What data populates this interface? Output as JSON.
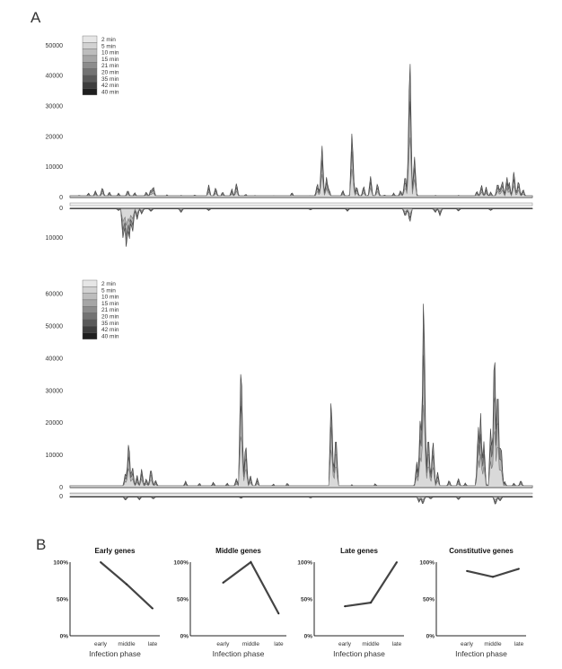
{
  "figure": {
    "panel_a_label": "A",
    "panel_b_label": "B"
  },
  "legend_items": [
    "2 min",
    "5 min",
    "10 min",
    "15 min",
    "21 min",
    "20 min",
    "35 min",
    "42 min",
    "40 min"
  ],
  "legend_colors": [
    "#e6e6e6",
    "#d2d2d2",
    "#bdbdbd",
    "#a6a6a6",
    "#8c8c8c",
    "#737373",
    "#595959",
    "#3d3d3d",
    "#1f1f1f"
  ],
  "chart_data": [
    {
      "type": "area",
      "x_range": [
        0,
        100
      ],
      "ylim": [
        0,
        52000
      ],
      "ylim_below": [
        0,
        14000
      ],
      "yticks": [
        0,
        10000,
        20000,
        30000,
        40000,
        50000
      ],
      "yticks_below": [
        0,
        10000
      ],
      "grid": false,
      "legend_position": "top-left",
      "peaks": [
        {
          "x": 2,
          "y": 900
        },
        {
          "x": 4,
          "y": 1600
        },
        {
          "x": 5.5,
          "y": 2300
        },
        {
          "x": 7,
          "y": 3600
        },
        {
          "x": 8.5,
          "y": 2000
        },
        {
          "x": 10.5,
          "y": 1500
        },
        {
          "x": 12.5,
          "y": 2600
        },
        {
          "x": 14,
          "y": 1700
        },
        {
          "x": 16.5,
          "y": 2000
        },
        {
          "x": 17.5,
          "y": 3000
        },
        {
          "x": 18,
          "y": 4000
        },
        {
          "x": 21,
          "y": 1000
        },
        {
          "x": 24,
          "y": 800
        },
        {
          "x": 27,
          "y": 1000
        },
        {
          "x": 30,
          "y": 4200
        },
        {
          "x": 31.5,
          "y": 3500
        },
        {
          "x": 33,
          "y": 2000
        },
        {
          "x": 35,
          "y": 2800
        },
        {
          "x": 36,
          "y": 5000
        },
        {
          "x": 38,
          "y": 1200
        },
        {
          "x": 40,
          "y": 700
        },
        {
          "x": 44,
          "y": 700
        },
        {
          "x": 48,
          "y": 1800
        },
        {
          "x": 52,
          "y": 800
        },
        {
          "x": 53.5,
          "y": 5000
        },
        {
          "x": 54.5,
          "y": 17800
        },
        {
          "x": 55.5,
          "y": 7000
        },
        {
          "x": 56,
          "y": 3000
        },
        {
          "x": 59,
          "y": 2500
        },
        {
          "x": 61,
          "y": 23000
        },
        {
          "x": 62,
          "y": 4000
        },
        {
          "x": 63.5,
          "y": 4000
        },
        {
          "x": 65,
          "y": 7000
        },
        {
          "x": 66.5,
          "y": 5000
        },
        {
          "x": 68,
          "y": 1000
        },
        {
          "x": 70,
          "y": 1500
        },
        {
          "x": 71.5,
          "y": 2500
        },
        {
          "x": 72.5,
          "y": 8000
        },
        {
          "x": 73.5,
          "y": 50500
        },
        {
          "x": 74.5,
          "y": 14000
        },
        {
          "x": 79,
          "y": 800
        },
        {
          "x": 84,
          "y": 800
        },
        {
          "x": 88,
          "y": 2300
        },
        {
          "x": 89,
          "y": 4400
        },
        {
          "x": 90,
          "y": 3500
        },
        {
          "x": 91,
          "y": 2000
        },
        {
          "x": 92.5,
          "y": 5200
        },
        {
          "x": 93,
          "y": 3500
        },
        {
          "x": 93.5,
          "y": 6000
        },
        {
          "x": 94.5,
          "y": 7000
        },
        {
          "x": 95,
          "y": 5000
        },
        {
          "x": 96,
          "y": 9200
        },
        {
          "x": 97,
          "y": 6000
        },
        {
          "x": 98,
          "y": 3000
        }
      ],
      "dips": [
        {
          "x": 10.5,
          "y": 800
        },
        {
          "x": 11.5,
          "y": 11500
        },
        {
          "x": 12.2,
          "y": 14500
        },
        {
          "x": 12.8,
          "y": 11500
        },
        {
          "x": 13.5,
          "y": 9000
        },
        {
          "x": 14.5,
          "y": 4000
        },
        {
          "x": 15.5,
          "y": 2000
        },
        {
          "x": 17.5,
          "y": 1200
        },
        {
          "x": 24,
          "y": 1500
        },
        {
          "x": 30,
          "y": 800
        },
        {
          "x": 52,
          "y": 600
        },
        {
          "x": 60,
          "y": 1000
        },
        {
          "x": 72.5,
          "y": 3000
        },
        {
          "x": 73.5,
          "y": 5000
        },
        {
          "x": 79,
          "y": 1500
        },
        {
          "x": 80,
          "y": 2500
        },
        {
          "x": 84,
          "y": 1000
        },
        {
          "x": 91,
          "y": 800
        }
      ]
    },
    {
      "type": "area",
      "x_range": [
        0,
        100
      ],
      "ylim": [
        0,
        66000
      ],
      "ylim_below": [
        0,
        6000
      ],
      "yticks": [
        0,
        10000,
        20000,
        30000,
        40000,
        50000,
        60000
      ],
      "yticks_below": [
        0
      ],
      "grid": false,
      "legend_position": "top-left",
      "peaks": [
        {
          "x": 12,
          "y": 5000
        },
        {
          "x": 12.7,
          "y": 15500
        },
        {
          "x": 13.5,
          "y": 7000
        },
        {
          "x": 14.5,
          "y": 4000
        },
        {
          "x": 15.5,
          "y": 6000
        },
        {
          "x": 16.5,
          "y": 3000
        },
        {
          "x": 17.5,
          "y": 6500
        },
        {
          "x": 18.5,
          "y": 2500
        },
        {
          "x": 25,
          "y": 2000
        },
        {
          "x": 28,
          "y": 1500
        },
        {
          "x": 31,
          "y": 1800
        },
        {
          "x": 34,
          "y": 1500
        },
        {
          "x": 36,
          "y": 3000
        },
        {
          "x": 37,
          "y": 42500
        },
        {
          "x": 38,
          "y": 15000
        },
        {
          "x": 39,
          "y": 4000
        },
        {
          "x": 40.5,
          "y": 3000
        },
        {
          "x": 44,
          "y": 1200
        },
        {
          "x": 47,
          "y": 1500
        },
        {
          "x": 52,
          "y": 600
        },
        {
          "x": 56.5,
          "y": 30000
        },
        {
          "x": 57.5,
          "y": 18000
        },
        {
          "x": 61,
          "y": 1000
        },
        {
          "x": 66,
          "y": 1300
        },
        {
          "x": 75,
          "y": 8000
        },
        {
          "x": 75.8,
          "y": 24500
        },
        {
          "x": 76.5,
          "y": 65500
        },
        {
          "x": 77.5,
          "y": 18000
        },
        {
          "x": 78.5,
          "y": 16000
        },
        {
          "x": 79.5,
          "y": 5000
        },
        {
          "x": 82,
          "y": 2500
        },
        {
          "x": 84,
          "y": 3000
        },
        {
          "x": 85.5,
          "y": 1500
        },
        {
          "x": 88.3,
          "y": 20000
        },
        {
          "x": 88.8,
          "y": 23500
        },
        {
          "x": 89.5,
          "y": 15000
        },
        {
          "x": 91,
          "y": 20000
        },
        {
          "x": 91.8,
          "y": 48000
        },
        {
          "x": 92.5,
          "y": 35000
        },
        {
          "x": 93.2,
          "y": 15000
        },
        {
          "x": 94,
          "y": 2000
        },
        {
          "x": 96,
          "y": 1500
        },
        {
          "x": 97.5,
          "y": 2500
        }
      ],
      "dips": [
        {
          "x": 12,
          "y": 1200
        },
        {
          "x": 15,
          "y": 1000
        },
        {
          "x": 18,
          "y": 800
        },
        {
          "x": 37,
          "y": 600
        },
        {
          "x": 52,
          "y": 500
        },
        {
          "x": 75.5,
          "y": 1800
        },
        {
          "x": 76.3,
          "y": 2600
        },
        {
          "x": 78,
          "y": 800
        },
        {
          "x": 84,
          "y": 1000
        },
        {
          "x": 92,
          "y": 2700
        },
        {
          "x": 93,
          "y": 1500
        }
      ]
    },
    {
      "type": "line",
      "title": "Early genes",
      "xlabel": "Infection phase",
      "categories": [
        "early",
        "middle",
        "late"
      ],
      "yticks": [
        "0%",
        "50%",
        "100%"
      ],
      "ylim": [
        0,
        100
      ],
      "series": [
        {
          "values": [
            100,
            70,
            37
          ]
        }
      ]
    },
    {
      "type": "line",
      "title": "Middle genes",
      "xlabel": "Infection phase",
      "categories": [
        "early",
        "middle",
        "late"
      ],
      "yticks": [
        "0%",
        "50%",
        "100%"
      ],
      "ylim": [
        0,
        100
      ],
      "series": [
        {
          "values": [
            72,
            100,
            30
          ]
        }
      ]
    },
    {
      "type": "line",
      "title": "Late genes",
      "xlabel": "Infection phase",
      "categories": [
        "early",
        "middle",
        "late"
      ],
      "yticks": [
        "0%",
        "50%",
        "100%"
      ],
      "ylim": [
        0,
        100
      ],
      "series": [
        {
          "values": [
            40,
            45,
            100
          ]
        }
      ]
    },
    {
      "type": "line",
      "title": "Constitutive genes",
      "xlabel": "Infection phase",
      "categories": [
        "early",
        "middle",
        "late"
      ],
      "yticks": [
        "0%",
        "50%",
        "100%"
      ],
      "ylim": [
        0,
        100
      ],
      "series": [
        {
          "values": [
            88,
            80,
            91
          ]
        }
      ]
    }
  ]
}
